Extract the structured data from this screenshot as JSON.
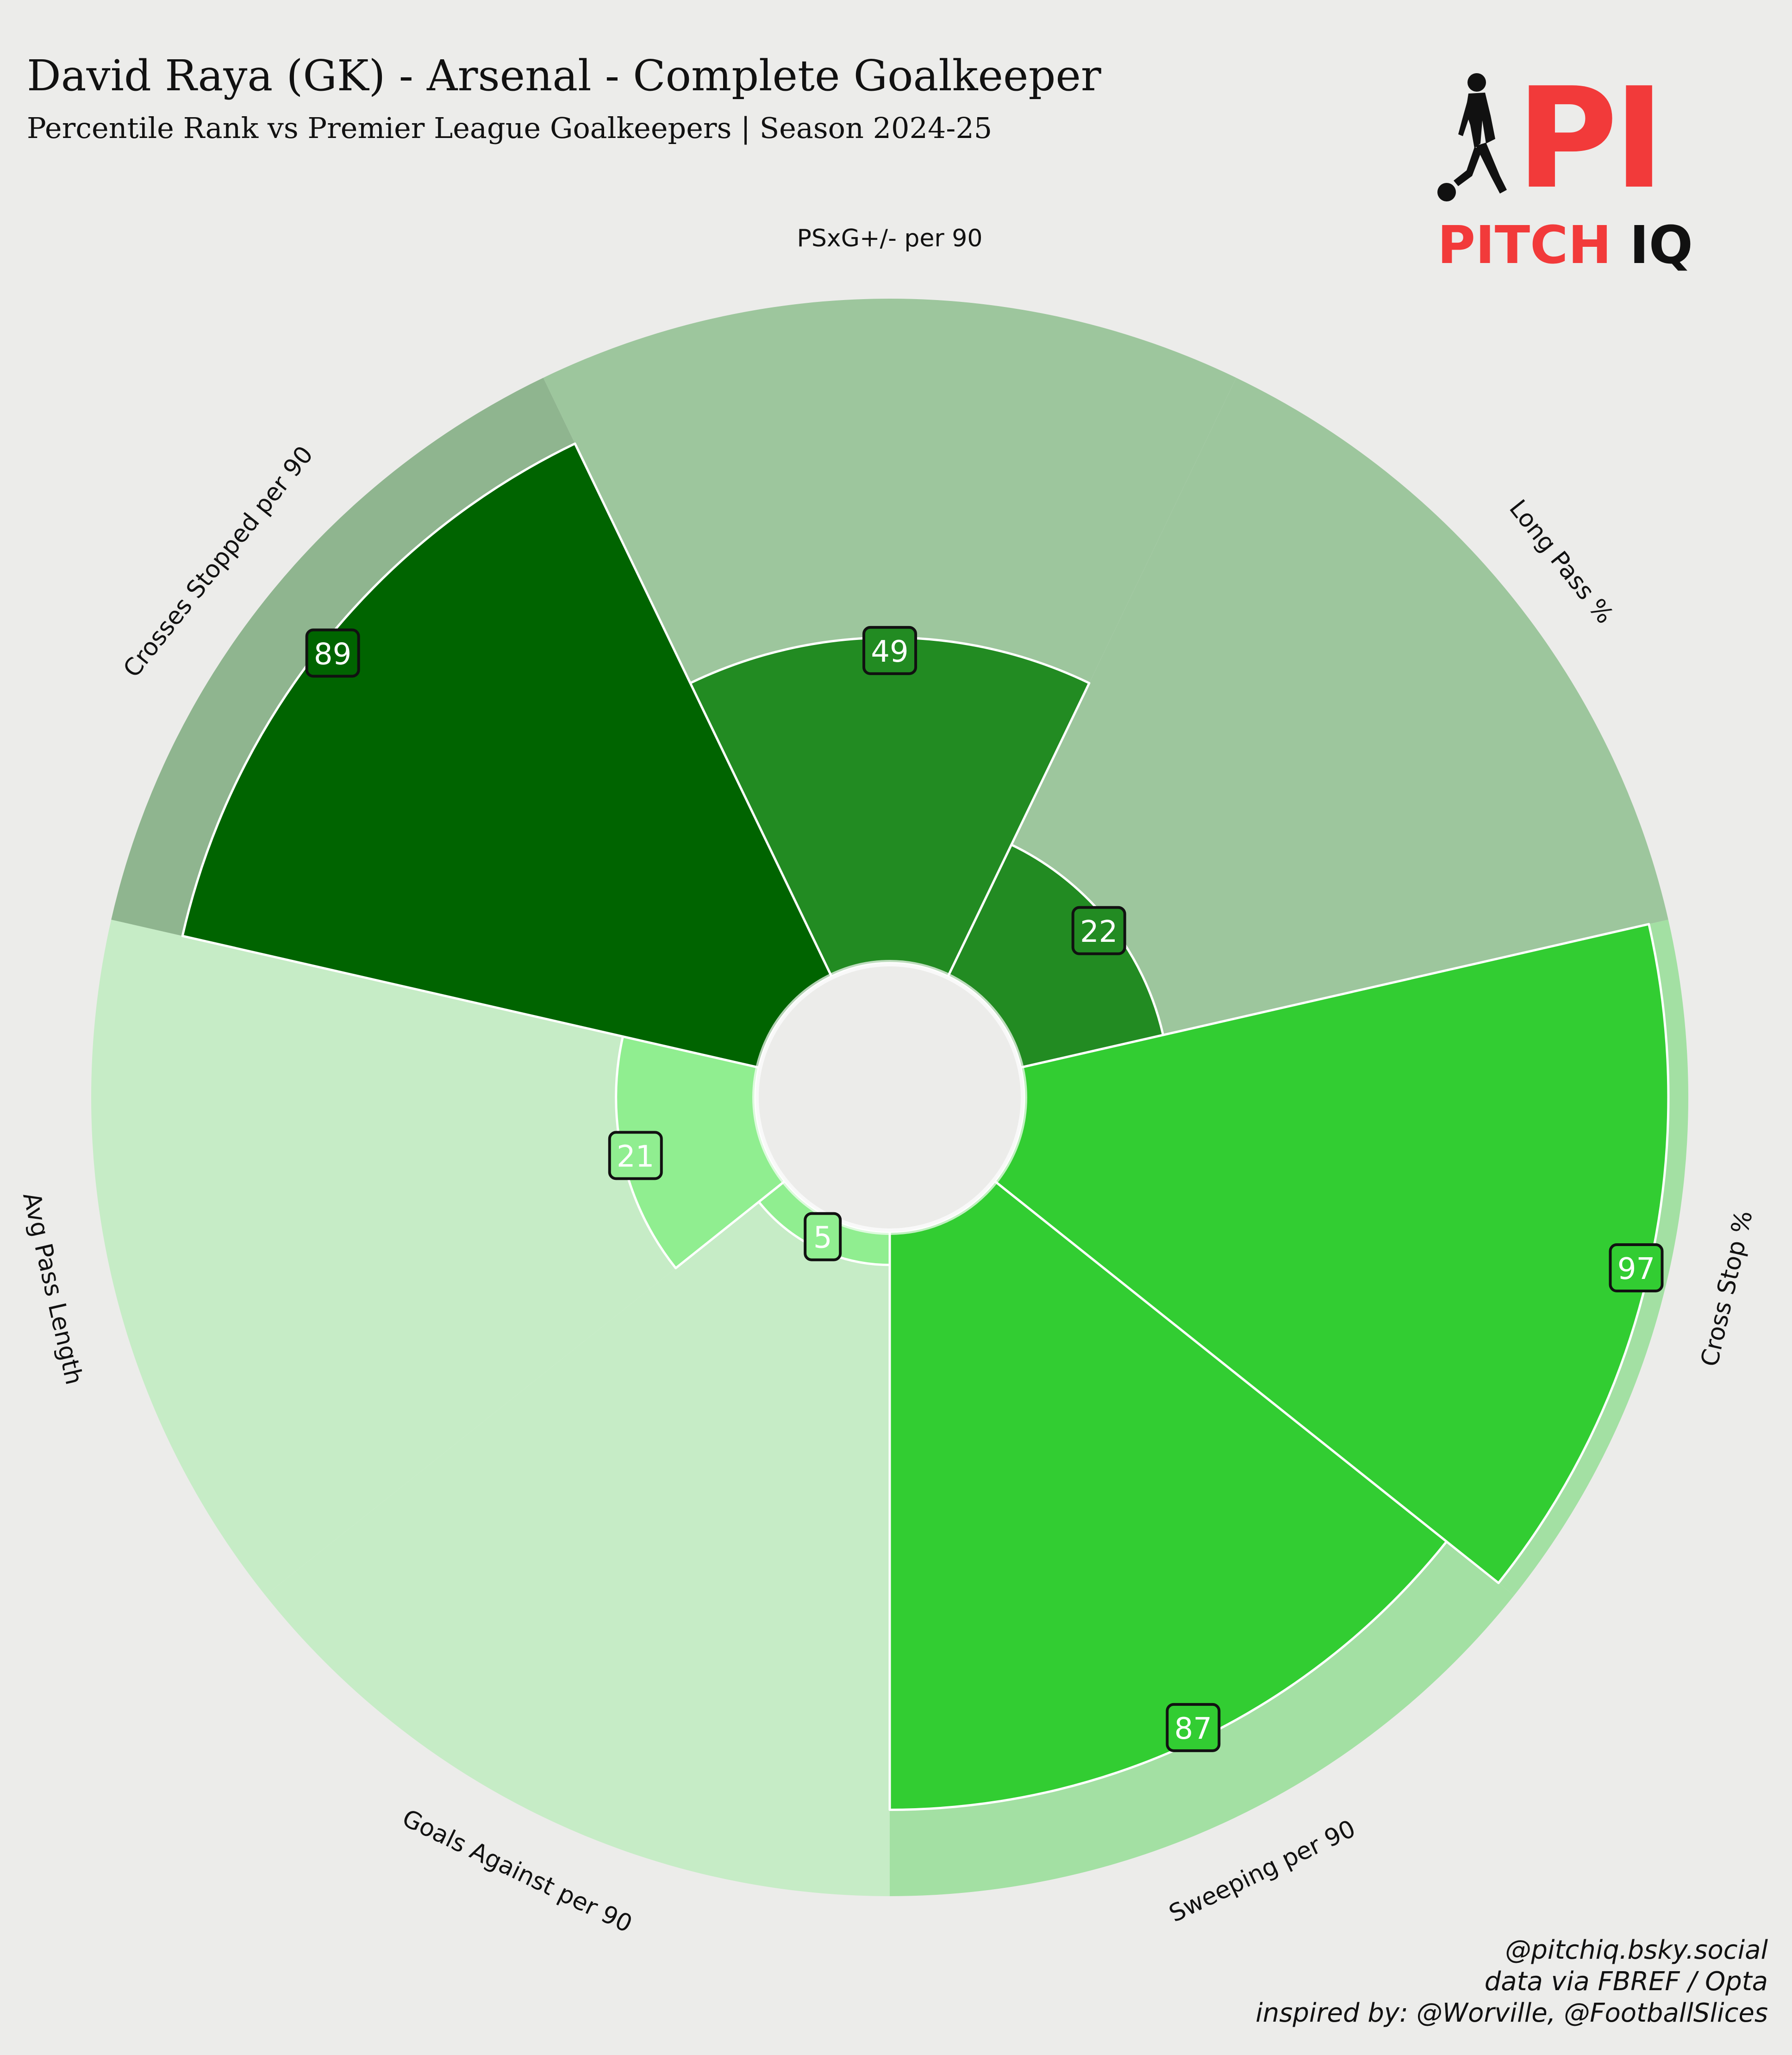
{
  "header": {
    "title": "David Raya (GK) - Arsenal - Complete Goalkeeper",
    "subtitle": "Percentile Rank vs Premier League Goalkeepers | Season 2024-25"
  },
  "logo": {
    "letters": "PI",
    "word_pitch": "PITCH",
    "word_iq": "IQ",
    "brand_color": "#f23a3a"
  },
  "credits": {
    "line1": "@pitchiq.bsky.social",
    "line2": "data via FBREF / Opta",
    "line3": "inspired by: @Worville, @FootballSlices"
  },
  "chart_data": {
    "type": "polar-bar",
    "title": "David Raya (GK) - Arsenal - Complete Goalkeeper",
    "scale": [
      0,
      100
    ],
    "grid": false,
    "legend": "none",
    "colors": {
      "background": "#ececea",
      "label_text_light": "#ffffff",
      "label_box_border": "#111111"
    },
    "categories": [
      {
        "label": "PSxG+/- per 90",
        "value": 49,
        "background_color": "#9dc69d",
        "bar_color": "#228b22",
        "label_box_color": "#228b22"
      },
      {
        "label": "Long Pass %",
        "value": 22,
        "background_color": "#9dc69d",
        "bar_color": "#228b22",
        "label_box_color": "#228b22"
      },
      {
        "label": "Cross Stop %",
        "value": 97,
        "background_color": "#a3e0a3",
        "bar_color": "#32cd32",
        "label_box_color": "#32cd32"
      },
      {
        "label": "Sweeping per 90",
        "value": 87,
        "background_color": "#a3e0a3",
        "bar_color": "#32cd32",
        "label_box_color": "#32cd32"
      },
      {
        "label": "Goals Against per 90",
        "value": 5,
        "background_color": "#c6ecc6",
        "bar_color": "#90ee90",
        "label_box_color": "#90ee90"
      },
      {
        "label": "Avg Pass Length",
        "value": 21,
        "background_color": "#c6ecc6",
        "bar_color": "#90ee90",
        "label_box_color": "#90ee90"
      },
      {
        "label": "Crosses Stopped per 90",
        "value": 89,
        "background_color": "#8fb58f",
        "bar_color": "#006400",
        "label_box_color": "#006400"
      }
    ]
  }
}
